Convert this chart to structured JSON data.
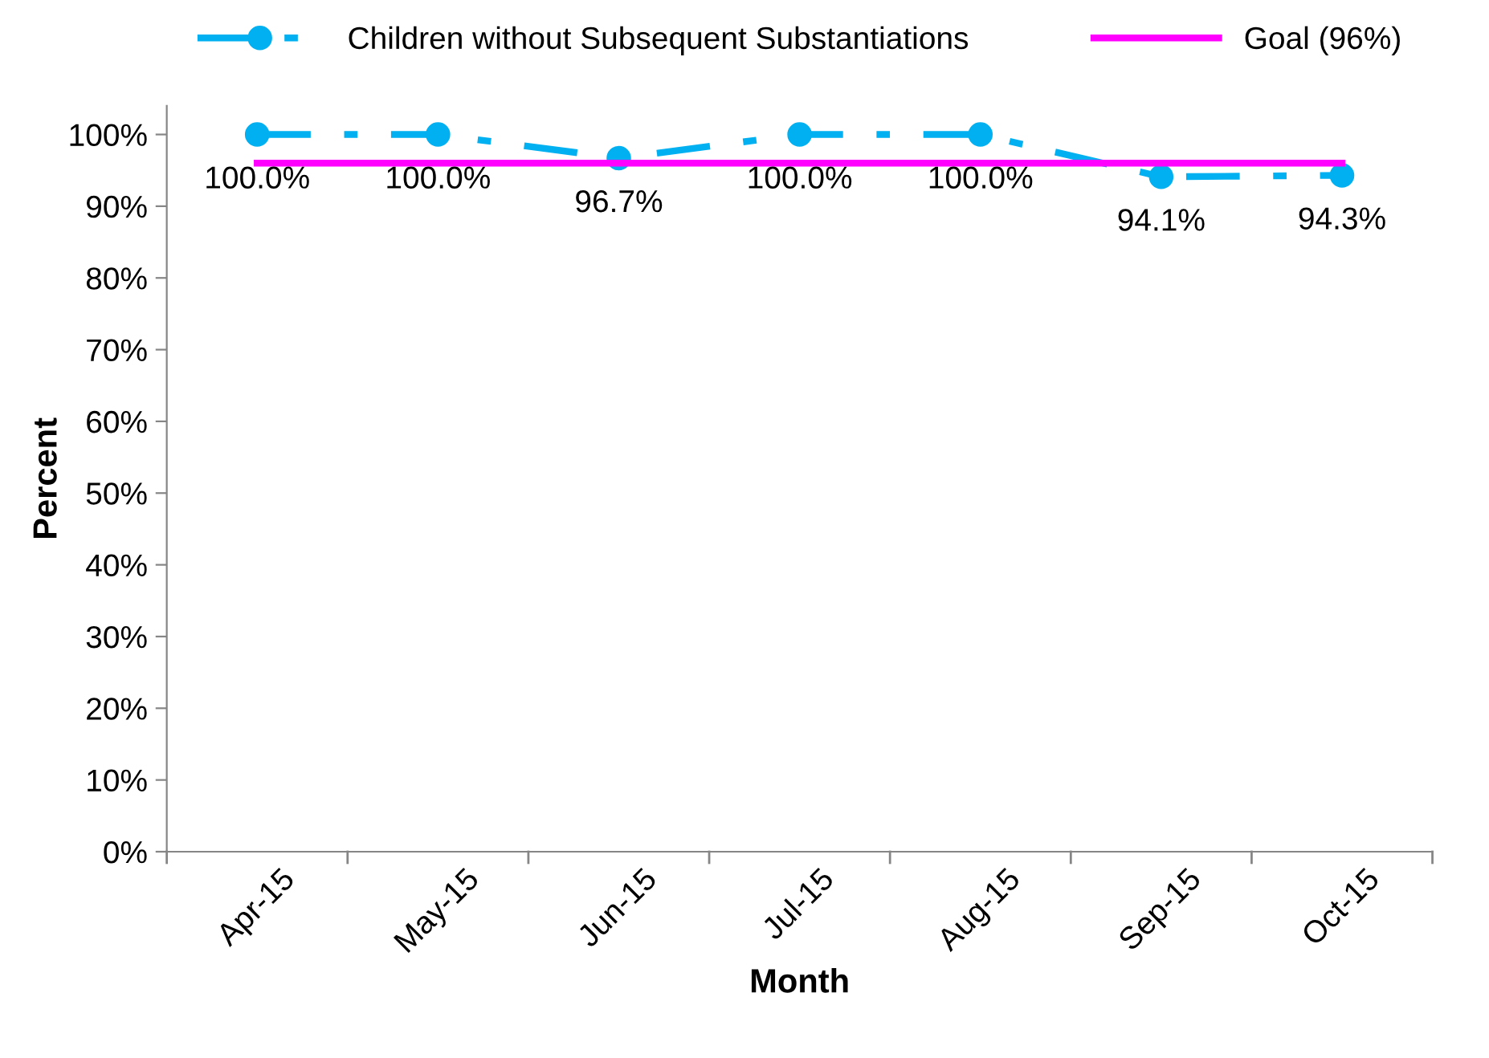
{
  "chart_data": {
    "type": "line",
    "xlabel": "Month",
    "ylabel": "Percent",
    "categories": [
      "Apr-15",
      "May-15",
      "Jun-15",
      "Jul-15",
      "Aug-15",
      "Sep-15",
      "Oct-15"
    ],
    "series": [
      {
        "name": "Children without Subsequent Substantiations",
        "color": "#00b0f0",
        "values": [
          100.0,
          100.0,
          96.7,
          100.0,
          100.0,
          94.1,
          94.3
        ],
        "value_labels": [
          "100.0%",
          "100.0%",
          "96.7%",
          "100.0%",
          "100.0%",
          "94.1%",
          "94.3%"
        ],
        "marker": "circle",
        "line_style": "dashdot"
      },
      {
        "name": "Goal (96%)",
        "color": "#ff00ff",
        "values": [
          96,
          96,
          96,
          96,
          96,
          96,
          96
        ],
        "marker": "none",
        "line_style": "solid"
      }
    ],
    "ylim": [
      0,
      104
    ],
    "yticks": [
      {
        "value": 0,
        "label": "0%"
      },
      {
        "value": 10,
        "label": "10%"
      },
      {
        "value": 20,
        "label": "20%"
      },
      {
        "value": 30,
        "label": "30%"
      },
      {
        "value": 40,
        "label": "40%"
      },
      {
        "value": 50,
        "label": "50%"
      },
      {
        "value": 60,
        "label": "60%"
      },
      {
        "value": 70,
        "label": "70%"
      },
      {
        "value": 80,
        "label": "80%"
      },
      {
        "value": 90,
        "label": "90%"
      },
      {
        "value": 100,
        "label": "100%"
      }
    ],
    "grid": false,
    "legend": "top"
  }
}
